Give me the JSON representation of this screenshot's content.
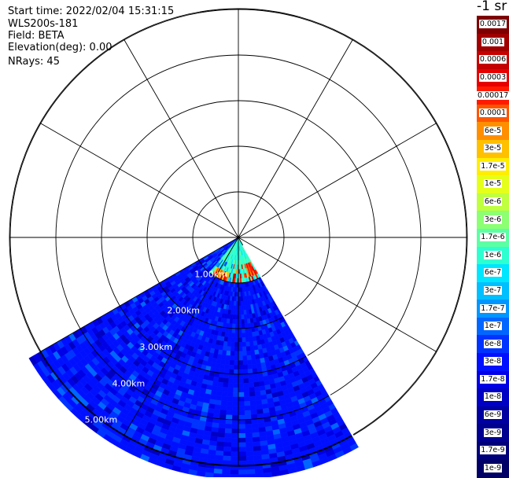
{
  "header": {
    "start_time": "Start time: 2022/02/04 15:31:15",
    "instrument": "WLS200s-181",
    "field": "Field: BETA",
    "elevation": "Elevation(deg): 0.00",
    "nrays": "NRays: 45"
  },
  "colorbar": {
    "title": "-1 sr",
    "labels": [
      "0.0017",
      "0.001",
      "0.0006",
      "0.0003",
      "0.00017",
      "0.0001",
      "6e-5",
      "3e-5",
      "1.7e-5",
      "1e-5",
      "6e-6",
      "3e-6",
      "1.7e-6",
      "1e-6",
      "6e-7",
      "3e-7",
      "1.7e-7",
      "1e-7",
      "6e-8",
      "3e-8",
      "1.7e-8",
      "1e-8",
      "6e-9",
      "3e-9",
      "1.7e-9",
      "1e-9"
    ],
    "colors": [
      "#7f0000",
      "#a00000",
      "#c40000",
      "#e60000",
      "#ff1a00",
      "#ff5500",
      "#ff8f00",
      "#ffc000",
      "#ffee00",
      "#e6ff1a",
      "#bfff40",
      "#8cff73",
      "#5cffa3",
      "#2effd1",
      "#00e6ff",
      "#00bfff",
      "#0096ff",
      "#0066ff",
      "#0033ff",
      "#0010ff",
      "#0000e6",
      "#0000c4",
      "#0000a0",
      "#000090",
      "#00007a",
      "#000066"
    ]
  },
  "chart_data": {
    "type": "heatmap",
    "projection": "polar PPI scan",
    "field": "BETA",
    "units": "-1 sr",
    "colorscale": "log",
    "range_rings": [
      {
        "value_km": 1.0,
        "label": "1.00km"
      },
      {
        "value_km": 2.0,
        "label": "2.00km"
      },
      {
        "value_km": 3.0,
        "label": "3.00km"
      },
      {
        "value_km": 4.0,
        "label": "4.00km"
      },
      {
        "value_km": 5.0,
        "label": "5.00km"
      }
    ],
    "ring_label_azimuth_deg": 217,
    "spoke_interval_deg": 30,
    "sector_azimuth_deg": [
      150,
      240
    ],
    "max_range_km": 5.3,
    "nrays": 45,
    "near_field": {
      "azimuth_deg": [
        150,
        220
      ],
      "range_km": [
        0,
        1.0
      ],
      "dominant_value": "1e-6",
      "peak_value": "0.001",
      "peak_azimuth_deg": [
        195,
        215
      ],
      "peak_range_km": [
        0.75,
        1.0
      ]
    },
    "far_field": {
      "range_km": [
        1.0,
        5.3
      ],
      "dominant_value": "1.7e-8",
      "sparse_values": [
        "6e-9",
        "6e-8"
      ]
    }
  }
}
